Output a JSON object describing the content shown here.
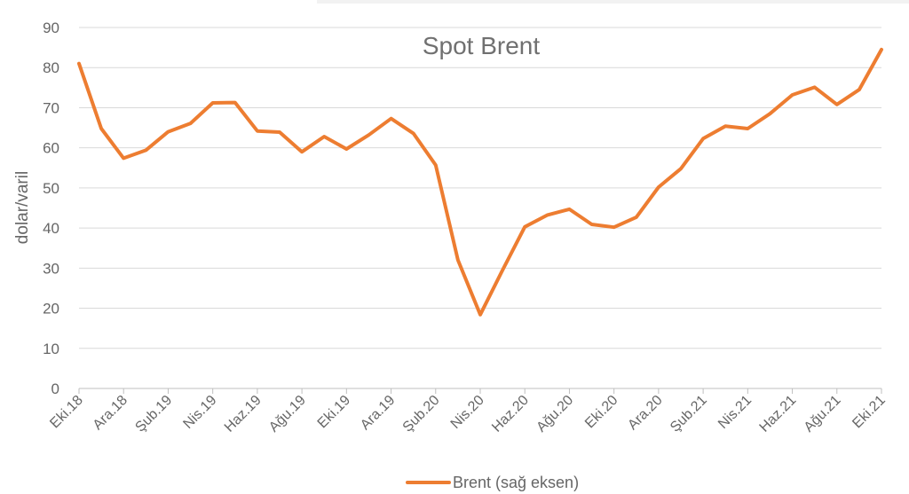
{
  "chart_data": {
    "type": "line",
    "title": "Spot Brent",
    "xlabel": "",
    "ylabel": "dolar/varil",
    "ylim": [
      0,
      90
    ],
    "y_ticks": [
      0,
      10,
      20,
      30,
      40,
      50,
      60,
      70,
      80,
      90
    ],
    "grid": true,
    "legend_position": "bottom",
    "x": [
      "Eki.18",
      "Kas.18",
      "Ara.18",
      "Oca.19",
      "Şub.19",
      "Mar.19",
      "Nis.19",
      "May.19",
      "Haz.19",
      "Tem.19",
      "Ağu.19",
      "Eyl.19",
      "Eki.19",
      "Kas.19",
      "Ara.19",
      "Oca.20",
      "Şub.20",
      "Mar.20",
      "Nis.20",
      "May.20",
      "Haz.20",
      "Tem.20",
      "Ağu.20",
      "Eyl.20",
      "Eki.20",
      "Kas.20",
      "Ara.20",
      "Oca.21",
      "Şub.21",
      "Mar.21",
      "Nis.21",
      "May.21",
      "Haz.21",
      "Tem.21",
      "Ağu.21",
      "Eyl.21",
      "Eki.21"
    ],
    "x_tick_labels": [
      "Eki.18",
      "Ara.18",
      "Şub.19",
      "Nis.19",
      "Haz.19",
      "Ağu.19",
      "Eki.19",
      "Ara.19",
      "Şub.20",
      "Nis.20",
      "Haz.20",
      "Ağu.20",
      "Eki.20",
      "Ara.20",
      "Şub.21",
      "Nis.21",
      "Haz.21",
      "Ağu.21",
      "Eki.21"
    ],
    "series": [
      {
        "name": "Brent (sağ eksen)",
        "color": "#ED7D31",
        "values": [
          81.0,
          64.8,
          57.4,
          59.4,
          64.0,
          66.1,
          71.2,
          71.3,
          64.2,
          63.9,
          59.0,
          62.8,
          59.7,
          63.2,
          67.3,
          63.6,
          55.7,
          32.0,
          18.4,
          29.5,
          40.3,
          43.2,
          44.7,
          40.9,
          40.2,
          42.7,
          50.2,
          54.8,
          62.3,
          65.4,
          64.8,
          68.5,
          73.2,
          75.1,
          70.8,
          74.5,
          84.5
        ]
      }
    ]
  }
}
